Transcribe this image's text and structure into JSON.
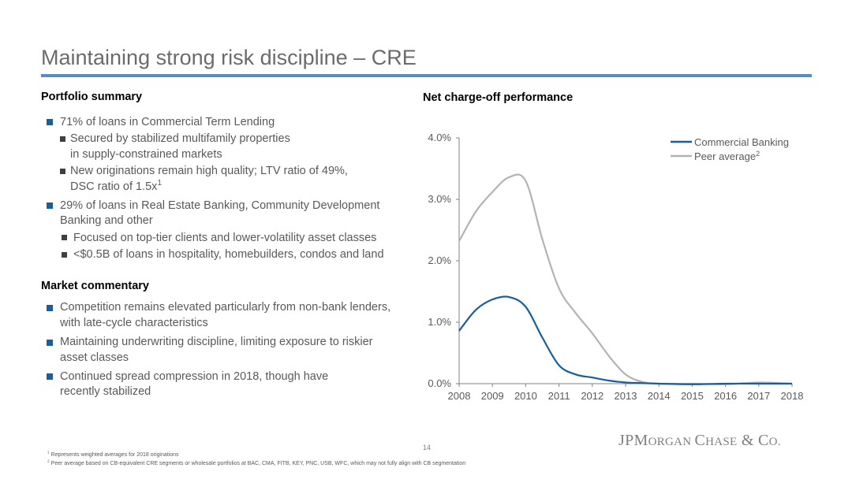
{
  "title": "Maintaining strong risk discipline – CRE",
  "portfolio": {
    "heading": "Portfolio summary",
    "bullets": [
      {
        "text": "71% of loans in Commercial Term Lending"
      },
      {
        "text": "Secured by stabilized multifamily properties"
      },
      {
        "text": "in supply-constrained markets"
      },
      {
        "text": "New originations remain high quality; LTV ratio of 49%,"
      },
      {
        "text": "DSC ratio of 1.5x",
        "sup": "1"
      },
      {
        "text": "29% of loans in Real Estate Banking, Community Development"
      },
      {
        "text": "Banking and other"
      },
      {
        "text": "Focused on top-tier clients and lower-volatility asset classes"
      },
      {
        "text": "<$0.5B of loans in hospitality, homebuilders, condos and land"
      }
    ]
  },
  "market": {
    "heading": "Market commentary",
    "bullets": [
      {
        "text": "Competition remains elevated particularly from non-bank lenders,"
      },
      {
        "text": "with late-cycle characteristics"
      },
      {
        "text": "Maintaining underwriting discipline, limiting exposure to riskier"
      },
      {
        "text": "asset classes"
      },
      {
        "text": "Continued spread compression in 2018, though have"
      },
      {
        "text": "recently stabilized"
      }
    ]
  },
  "chart_heading": "Net charge-off performance",
  "chart_data": {
    "type": "line",
    "title": "Net charge-off performance",
    "x": [
      2008,
      2008.5,
      2009,
      2009.5,
      2010,
      2010.5,
      2011,
      2011.5,
      2012,
      2012.5,
      2013,
      2013.5,
      2014,
      2015,
      2016,
      2017,
      2018
    ],
    "x_ticks": [
      "2008",
      "2009",
      "2010",
      "2011",
      "2012",
      "2013",
      "2014",
      "2015",
      "2016",
      "2017",
      "2018"
    ],
    "y_ticks": [
      "4.0%",
      "3.0%",
      "2.0%",
      "1.0%",
      "0.0%"
    ],
    "ylim": [
      0,
      4
    ],
    "series": [
      {
        "name": "Commercial Banking",
        "color": "#1a5e9a",
        "values": [
          0.86,
          1.2,
          1.37,
          1.41,
          1.25,
          0.75,
          0.3,
          0.15,
          0.1,
          0.05,
          0.02,
          0.01,
          0.0,
          -0.01,
          0.0,
          0.0,
          0.0
        ]
      },
      {
        "name": "Peer average",
        "sup": "2",
        "color": "#b3b3b3",
        "values": [
          2.32,
          2.8,
          3.12,
          3.36,
          3.3,
          2.35,
          1.55,
          1.15,
          0.82,
          0.45,
          0.15,
          0.03,
          0.0,
          0.0,
          -0.01,
          0.02,
          0.0
        ]
      }
    ],
    "legend": "top-right",
    "grid": false
  },
  "page_number": "14",
  "logo": {
    "a": "JP",
    "b": "M",
    "c": "ORGAN ",
    "d": "C",
    "e": "HASE",
    "f": " & ",
    "g": "C",
    "h": "O."
  },
  "footnotes": [
    {
      "sup": "1",
      "text": " Represents weighted averages for 2018 originations"
    },
    {
      "sup": "2",
      "text": " Peer average based on CB-equivalent CRE segments or wholesale portfolios at BAC, CMA, FITB, KEY, PNC, USB, WFC, which may not fully align with CB segmentation"
    }
  ]
}
